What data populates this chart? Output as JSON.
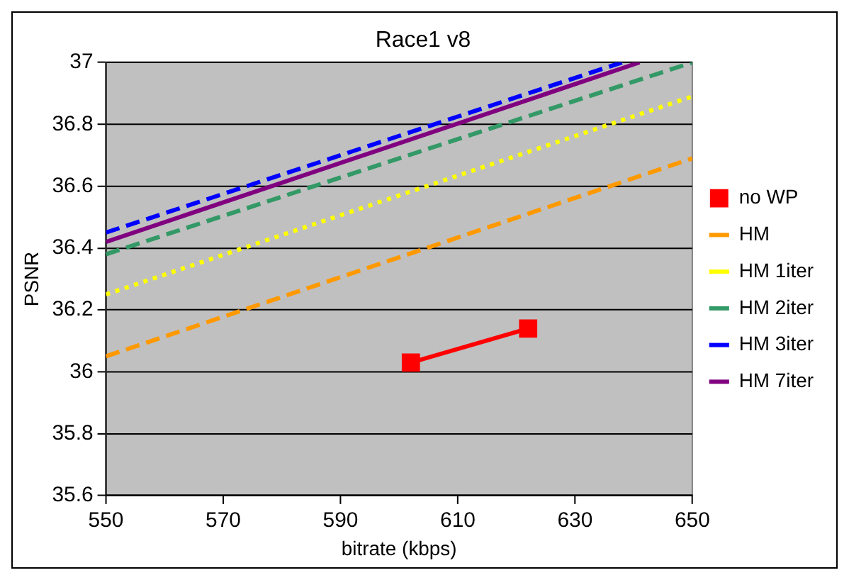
{
  "chart_data": {
    "type": "line",
    "title": "Race1 v8",
    "xlabel": "bitrate (kbps)",
    "ylabel": "PSNR",
    "xlim": [
      550,
      650
    ],
    "xticks": [
      550,
      570,
      590,
      610,
      630,
      650
    ],
    "ylim": [
      35.6,
      37
    ],
    "yticks": [
      35.6,
      35.8,
      36,
      36.2,
      36.4,
      36.6,
      36.8,
      37
    ],
    "grid": "y",
    "legend": "right",
    "series": [
      {
        "name": "no WP",
        "color": "#ff0000",
        "x": [
          602,
          622
        ],
        "values": [
          36.03,
          36.14
        ],
        "marker": "square",
        "line_style": "solid"
      },
      {
        "name": "HM",
        "color": "#ff9900",
        "x": [
          550,
          650
        ],
        "values": [
          36.05,
          36.69
        ],
        "marker": "none",
        "line_style": "dashed"
      },
      {
        "name": "HM 1iter",
        "color": "#ffff00",
        "x": [
          550,
          650
        ],
        "values": [
          36.25,
          36.89
        ],
        "marker": "none",
        "line_style": "dotted"
      },
      {
        "name": "HM 2iter",
        "color": "#339966",
        "x": [
          550,
          650
        ],
        "values": [
          36.38,
          37.0
        ],
        "marker": "none",
        "line_style": "dashed"
      },
      {
        "name": "HM 3iter",
        "color": "#0000ff",
        "x": [
          550,
          638
        ],
        "values": [
          36.45,
          37.0
        ],
        "marker": "none",
        "line_style": "dashed"
      },
      {
        "name": "HM 7iter",
        "color": "#800080",
        "x": [
          550,
          641
        ],
        "values": [
          36.42,
          37.0
        ],
        "marker": "none",
        "line_style": "solid"
      }
    ]
  }
}
